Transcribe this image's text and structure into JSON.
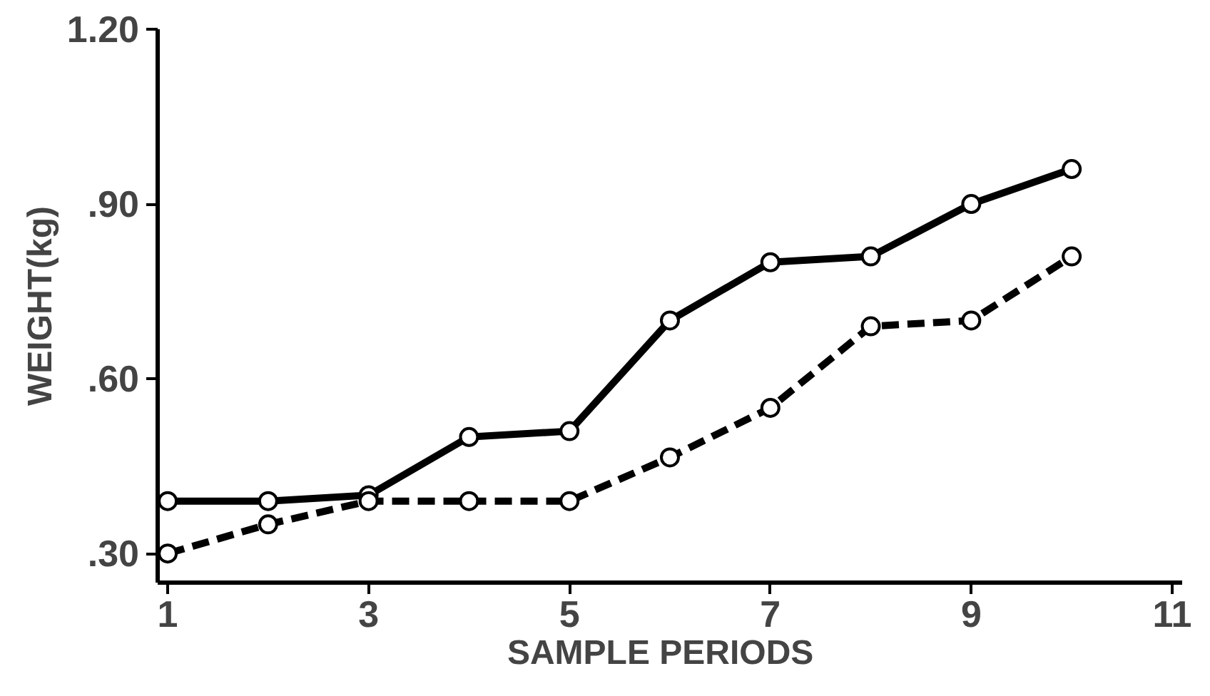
{
  "chart_data": {
    "type": "line",
    "xlabel": "SAMPLE   PERIODS",
    "ylabel": "WEIGHT(kg)",
    "x": [
      1,
      2,
      3,
      4,
      5,
      6,
      7,
      8,
      9,
      10
    ],
    "series": [
      {
        "color": "#000000",
        "line_style": "solid",
        "values": [
          0.39,
          0.39,
          0.4,
          0.5,
          0.51,
          0.7,
          0.8,
          0.81,
          0.9,
          0.96
        ]
      },
      {
        "color": "#000000",
        "line_style": "dashed",
        "values": [
          0.3,
          0.35,
          0.39,
          0.39,
          0.39,
          0.465,
          0.55,
          0.69,
          0.7,
          0.81
        ]
      }
    ],
    "xlim": [
      0.9,
      11.1
    ],
    "ylim": [
      0.25,
      1.2
    ],
    "xticks": [
      1,
      3,
      5,
      7,
      9,
      11
    ],
    "yticks": [
      {
        "value": 0.3,
        "label": ".30"
      },
      {
        "value": 0.6,
        "label": ".60"
      },
      {
        "value": 0.9,
        "label": ".90"
      },
      {
        "value": 1.2,
        "label": "1.20"
      }
    ],
    "marker": "circle",
    "grid": false
  }
}
